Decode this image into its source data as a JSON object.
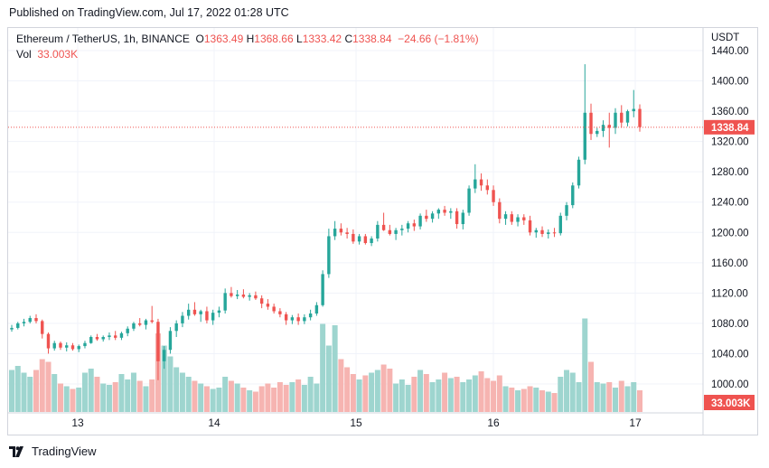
{
  "header": {
    "published": "Published on TradingView.com, Jul 17, 2022 01:28 UTC"
  },
  "legend": {
    "symbol": "Ethereum / TetherUS, 1h, BINANCE",
    "o_label": "O",
    "o_value": "1363.49",
    "h_label": "H",
    "h_value": "1368.66",
    "l_label": "L",
    "l_value": "1333.42",
    "c_label": "C",
    "c_value": "1338.84",
    "change": "−24.66 (−1.81%)",
    "vol_label": "Vol",
    "vol_value": "33.003K"
  },
  "footer": {
    "brand": "TradingView",
    "logo_icon": "tradingview-logo-icon"
  },
  "colors": {
    "up": "#26a69a",
    "down": "#ef5350",
    "up_vol": "#9ed5cf",
    "down_vol": "#f6b4b1",
    "grid": "#f0f3fa"
  },
  "chart_data": {
    "type": "candlestick",
    "currency_label": "USDT",
    "y_ticks": [
      "1440.00",
      "1400.00",
      "1360.00",
      "1320.00",
      "1280.00",
      "1240.00",
      "1200.00",
      "1160.00",
      "1120.00",
      "1080.00",
      "1040.00",
      "1000.00"
    ],
    "ylim": [
      985,
      1450
    ],
    "x_ticks": [
      "13",
      "14",
      "15",
      "16",
      "17"
    ],
    "last_price_label": "1338.84",
    "last_volume_label": "33.003K",
    "grid": true,
    "candles": [
      [
        1072,
        1078,
        1069,
        1074,
        3.1
      ],
      [
        1074,
        1082,
        1072,
        1080,
        3.4
      ],
      [
        1080,
        1086,
        1076,
        1082,
        2.9
      ],
      [
        1082,
        1090,
        1080,
        1087,
        2.6
      ],
      [
        1087,
        1092,
        1080,
        1083,
        3.1
      ],
      [
        1083,
        1085,
        1060,
        1066,
        3.9
      ],
      [
        1066,
        1068,
        1040,
        1047,
        3.7
      ],
      [
        1047,
        1057,
        1044,
        1054,
        2.8
      ],
      [
        1054,
        1056,
        1045,
        1048,
        2.1
      ],
      [
        1048,
        1055,
        1043,
        1051,
        1.9
      ],
      [
        1051,
        1054,
        1044,
        1046,
        1.7
      ],
      [
        1046,
        1052,
        1042,
        1050,
        1.8
      ],
      [
        1050,
        1057,
        1047,
        1054,
        2.9
      ],
      [
        1054,
        1064,
        1053,
        1062,
        3.2
      ],
      [
        1062,
        1066,
        1057,
        1059,
        2.6
      ],
      [
        1059,
        1064,
        1056,
        1062,
        2.1
      ],
      [
        1062,
        1068,
        1058,
        1064,
        2.0
      ],
      [
        1064,
        1070,
        1058,
        1061,
        2.2
      ],
      [
        1061,
        1069,
        1058,
        1067,
        2.8
      ],
      [
        1067,
        1076,
        1063,
        1073,
        2.4
      ],
      [
        1073,
        1082,
        1070,
        1080,
        2.9
      ],
      [
        1080,
        1087,
        1076,
        1078,
        2.3
      ],
      [
        1078,
        1086,
        1072,
        1084,
        1.9
      ],
      [
        1084,
        1103,
        1080,
        1082,
        2.4
      ],
      [
        1082,
        1086,
        1005,
        1030,
        5.8
      ],
      [
        1030,
        1050,
        1020,
        1045,
        4.9
      ],
      [
        1045,
        1075,
        1040,
        1070,
        4.1
      ],
      [
        1070,
        1084,
        1062,
        1080,
        3.3
      ],
      [
        1080,
        1095,
        1075,
        1090,
        2.9
      ],
      [
        1090,
        1106,
        1085,
        1098,
        2.6
      ],
      [
        1098,
        1108,
        1090,
        1092,
        2.3
      ],
      [
        1092,
        1098,
        1082,
        1096,
        2.1
      ],
      [
        1096,
        1102,
        1080,
        1084,
        1.9
      ],
      [
        1084,
        1098,
        1078,
        1094,
        1.7
      ],
      [
        1094,
        1102,
        1088,
        1097,
        1.8
      ],
      [
        1097,
        1126,
        1093,
        1120,
        2.6
      ],
      [
        1120,
        1128,
        1114,
        1116,
        2.3
      ],
      [
        1116,
        1124,
        1112,
        1118,
        2.1
      ],
      [
        1118,
        1125,
        1113,
        1115,
        1.8
      ],
      [
        1115,
        1120,
        1110,
        1117,
        1.6
      ],
      [
        1117,
        1122,
        1111,
        1113,
        1.5
      ],
      [
        1113,
        1117,
        1100,
        1106,
        1.9
      ],
      [
        1106,
        1112,
        1098,
        1102,
        2.1
      ],
      [
        1102,
        1106,
        1093,
        1096,
        1.8
      ],
      [
        1096,
        1100,
        1088,
        1092,
        2.2
      ],
      [
        1092,
        1095,
        1078,
        1084,
        2.0
      ],
      [
        1084,
        1091,
        1079,
        1088,
        2.2
      ],
      [
        1088,
        1093,
        1078,
        1083,
        2.4
      ],
      [
        1083,
        1092,
        1079,
        1088,
        2.0
      ],
      [
        1088,
        1098,
        1084,
        1093,
        2.6
      ],
      [
        1093,
        1108,
        1090,
        1104,
        2.1
      ],
      [
        1104,
        1150,
        1102,
        1145,
        6.5
      ],
      [
        1145,
        1205,
        1140,
        1195,
        4.9
      ],
      [
        1195,
        1215,
        1190,
        1205,
        6.4
      ],
      [
        1205,
        1212,
        1196,
        1200,
        3.9
      ],
      [
        1200,
        1206,
        1192,
        1198,
        3.3
      ],
      [
        1198,
        1204,
        1185,
        1188,
        2.8
      ],
      [
        1188,
        1198,
        1184,
        1195,
        2.4
      ],
      [
        1195,
        1198,
        1184,
        1186,
        2.7
      ],
      [
        1186,
        1195,
        1182,
        1192,
        2.9
      ],
      [
        1192,
        1215,
        1188,
        1210,
        3.1
      ],
      [
        1210,
        1226,
        1202,
        1203,
        3.5
      ],
      [
        1203,
        1210,
        1196,
        1198,
        3.2
      ],
      [
        1198,
        1206,
        1190,
        1203,
        2.1
      ],
      [
        1203,
        1210,
        1196,
        1205,
        2.4
      ],
      [
        1205,
        1215,
        1200,
        1212,
        2.0
      ],
      [
        1212,
        1217,
        1202,
        1208,
        2.6
      ],
      [
        1208,
        1225,
        1204,
        1222,
        3.1
      ],
      [
        1222,
        1230,
        1214,
        1218,
        2.8
      ],
      [
        1218,
        1228,
        1213,
        1225,
        2.2
      ],
      [
        1225,
        1232,
        1218,
        1230,
        2.4
      ],
      [
        1230,
        1235,
        1222,
        1226,
        2.9
      ],
      [
        1226,
        1232,
        1218,
        1228,
        2.5
      ],
      [
        1228,
        1232,
        1205,
        1211,
        2.6
      ],
      [
        1211,
        1230,
        1204,
        1226,
        2.2
      ],
      [
        1226,
        1262,
        1222,
        1258,
        2.4
      ],
      [
        1258,
        1290,
        1252,
        1270,
        2.7
      ],
      [
        1270,
        1278,
        1255,
        1262,
        3.0
      ],
      [
        1262,
        1270,
        1250,
        1256,
        2.5
      ],
      [
        1256,
        1262,
        1235,
        1240,
        2.3
      ],
      [
        1240,
        1245,
        1212,
        1218,
        2.7
      ],
      [
        1218,
        1228,
        1210,
        1224,
        1.9
      ],
      [
        1224,
        1228,
        1210,
        1214,
        1.8
      ],
      [
        1214,
        1224,
        1208,
        1220,
        1.6
      ],
      [
        1220,
        1224,
        1210,
        1216,
        1.7
      ],
      [
        1216,
        1222,
        1196,
        1200,
        1.9
      ],
      [
        1200,
        1206,
        1193,
        1203,
        1.8
      ],
      [
        1203,
        1208,
        1194,
        1198,
        1.6
      ],
      [
        1198,
        1204,
        1192,
        1200,
        1.5
      ],
      [
        1200,
        1206,
        1194,
        1199,
        1.4
      ],
      [
        1199,
        1226,
        1196,
        1222,
        2.6
      ],
      [
        1222,
        1240,
        1216,
        1236,
        3.1
      ],
      [
        1236,
        1266,
        1232,
        1262,
        2.9
      ],
      [
        1262,
        1300,
        1258,
        1296,
        2.2
      ],
      [
        1296,
        1422,
        1290,
        1358,
        6.9
      ],
      [
        1358,
        1370,
        1322,
        1330,
        3.7
      ],
      [
        1330,
        1338,
        1326,
        1334,
        2.2
      ],
      [
        1334,
        1348,
        1326,
        1342,
        2.1
      ],
      [
        1342,
        1358,
        1312,
        1338,
        2.2
      ],
      [
        1338,
        1364,
        1330,
        1358,
        1.8
      ],
      [
        1358,
        1368,
        1338,
        1345,
        2.3
      ],
      [
        1345,
        1362,
        1340,
        1360,
        1.9
      ],
      [
        1360,
        1388,
        1352,
        1363,
        2.2
      ],
      [
        1363,
        1369,
        1333,
        1339,
        1.6
      ]
    ]
  }
}
